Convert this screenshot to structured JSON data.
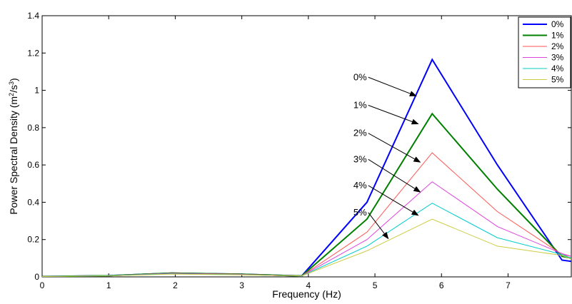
{
  "chart_data": {
    "type": "line",
    "xlabel": "Frequency (Hz)",
    "ylabel": "Power Spectral Density (m²/s³)",
    "xlim": [
      0,
      7.95
    ],
    "ylim": [
      0,
      1.4
    ],
    "xticks": [
      "0",
      "1",
      "2",
      "3",
      "4",
      "5",
      "6",
      "7"
    ],
    "yticks": [
      "0",
      "0.2",
      "0.4",
      "0.6",
      "0.8",
      "1",
      "1.2",
      "1.4"
    ],
    "grid": false,
    "legend_position": "top-right",
    "x": [
      0,
      0.98,
      1.95,
      2.93,
      3.9,
      4.88,
      5.86,
      6.84,
      7.81,
      7.95
    ],
    "series": [
      {
        "name": "0%",
        "color": "#0000ff",
        "values": [
          0.002,
          0.006,
          0.02,
          0.015,
          0.005,
          0.4,
          1.165,
          0.6,
          0.09,
          0.083
        ]
      },
      {
        "name": "1%",
        "color": "#008000",
        "values": [
          0.002,
          0.006,
          0.02,
          0.015,
          0.005,
          0.31,
          0.875,
          0.47,
          0.11,
          0.1
        ]
      },
      {
        "name": "2%",
        "color": "#ff5555",
        "values": [
          0.002,
          0.006,
          0.019,
          0.014,
          0.005,
          0.24,
          0.665,
          0.35,
          0.12,
          0.11
        ]
      },
      {
        "name": "3%",
        "color": "#dd44dd",
        "values": [
          0.002,
          0.006,
          0.018,
          0.013,
          0.005,
          0.2,
          0.51,
          0.27,
          0.125,
          0.11
        ]
      },
      {
        "name": "4%",
        "color": "#00cccc",
        "values": [
          0.002,
          0.006,
          0.016,
          0.012,
          0.005,
          0.165,
          0.395,
          0.21,
          0.12,
          0.1
        ]
      },
      {
        "name": "5%",
        "color": "#cccc44",
        "values": [
          0.002,
          0.005,
          0.015,
          0.011,
          0.005,
          0.14,
          0.31,
          0.165,
          0.115,
          0.095
        ]
      }
    ],
    "annotations": [
      {
        "text": "0%",
        "from": [
          4.9,
          1.07
        ],
        "to": [
          5.62,
          0.97
        ]
      },
      {
        "text": "1%",
        "from": [
          4.9,
          0.92
        ],
        "to": [
          5.65,
          0.82
        ]
      },
      {
        "text": "2%",
        "from": [
          4.9,
          0.77
        ],
        "to": [
          5.68,
          0.615
        ]
      },
      {
        "text": "3%",
        "from": [
          4.9,
          0.63
        ],
        "to": [
          5.68,
          0.455
        ]
      },
      {
        "text": "4%",
        "from": [
          4.9,
          0.49
        ],
        "to": [
          5.65,
          0.33
        ]
      },
      {
        "text": "5%",
        "from": [
          4.9,
          0.345
        ],
        "to": [
          5.2,
          0.205
        ]
      }
    ]
  }
}
